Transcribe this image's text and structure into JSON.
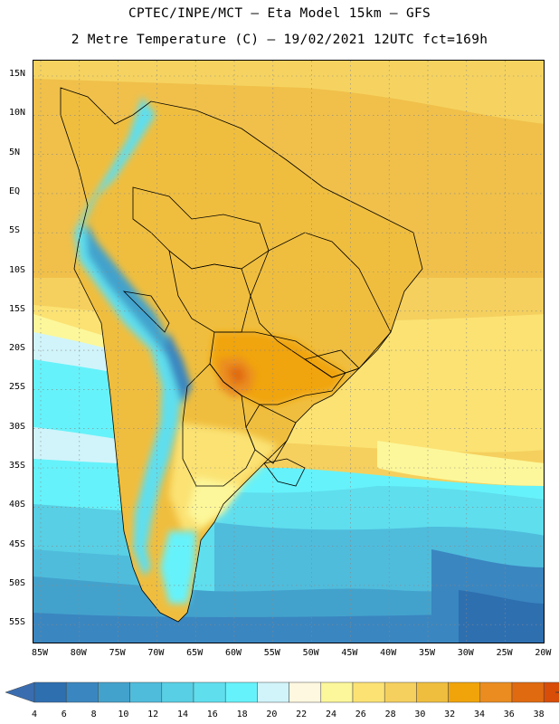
{
  "header": {
    "line1": "CPTEC/INPE/MCT –  Eta Model 15km – GFS",
    "line2": "2 Metre Temperature (C) – 19/02/2021 12UTC fct=169h"
  },
  "axes": {
    "lat_labels": [
      "15N",
      "10N",
      "5N",
      "EQ",
      "5S",
      "10S",
      "15S",
      "20S",
      "25S",
      "30S",
      "35S",
      "40S",
      "45S",
      "50S",
      "55S"
    ],
    "lon_labels": [
      "85W",
      "80W",
      "75W",
      "70W",
      "65W",
      "60W",
      "55W",
      "50W",
      "45W",
      "40W",
      "35W",
      "30W",
      "25W",
      "20W"
    ]
  },
  "colorbar": {
    "labels": [
      "4",
      "6",
      "8",
      "10",
      "12",
      "14",
      "16",
      "18",
      "20",
      "22",
      "24",
      "26",
      "28",
      "30",
      "32",
      "34",
      "36",
      "38"
    ],
    "colors": [
      "#2e6fb0",
      "#3a86c0",
      "#43a2cc",
      "#4fbcdc",
      "#58cfe4",
      "#5fdeee",
      "#66f2fa",
      "#d0f4fa",
      "#fff8e0",
      "#fcf79a",
      "#fbe273",
      "#f5d05e",
      "#f0be3e",
      "#f0a40a",
      "#ea8c20",
      "#e06a10",
      "#d84d08",
      "#c83400"
    ],
    "under_color": "#3a6db0",
    "over_color": "#c23200"
  }
}
